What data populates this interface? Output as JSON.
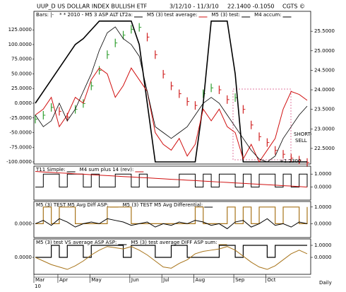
{
  "header": {
    "symbol": "UUP_D   US DOLLAR INDEX BULLISH ETF",
    "range": "3/12/10 - 11/3/10",
    "quote": "22.1400   -0.1050",
    "credit": "CGTS ©"
  },
  "chart_data": [
    {
      "type": "line",
      "series": [
        {
          "name": "Bars: |-",
          "style": "bars",
          "axis": "y2",
          "up_color": "#2f9e2f",
          "down_color": "#d02020",
          "values": [
            23.25,
            23.35,
            23.55,
            23.45,
            23.3,
            23.5,
            23.65,
            24.1,
            24.5,
            24.9,
            25.2,
            25.4,
            25.55,
            25.6,
            25.35,
            24.9,
            24.4,
            24.1,
            23.9,
            23.7,
            23.6,
            23.9,
            24.05,
            24.0,
            23.75,
            23.8,
            23.5,
            23.1,
            22.8,
            22.65,
            22.45,
            22.35,
            22.25,
            22.2,
            22.14
          ]
        },
        {
          "name": "* * 2010 - M5 3 ASP ALT LT2a:",
          "color": "#000000",
          "width": 1.6,
          "values": [
            0,
            20,
            40,
            60,
            80,
            100,
            110,
            125,
            140,
            140,
            140,
            140,
            140,
            100,
            0,
            -100,
            -100,
            -100,
            -100,
            -100,
            -100,
            0,
            140,
            140,
            140,
            50,
            -100,
            -100,
            -100,
            -100,
            -100,
            -100,
            -100,
            -100,
            -100
          ]
        },
        {
          "name": "M5 (3) test average:",
          "color": "#d01010",
          "width": 1,
          "values": [
            -20,
            -10,
            10,
            -40,
            -20,
            10,
            0,
            40,
            60,
            50,
            10,
            30,
            60,
            40,
            20,
            -50,
            -70,
            -80,
            -60,
            -90,
            -70,
            -10,
            -30,
            -10,
            -40,
            -50,
            -95,
            -70,
            -100,
            -80,
            -60,
            -10,
            20,
            15,
            5
          ]
        },
        {
          "name": "M5 (3) test:",
          "color": "#000000",
          "width": 0.8,
          "values": [
            -20,
            -40,
            -30,
            0,
            -30,
            -10,
            20,
            50,
            90,
            120,
            130,
            110,
            100,
            80,
            20,
            -40,
            -50,
            -60,
            -50,
            -40,
            -20,
            0,
            10,
            0,
            -20,
            -40,
            -60,
            -80,
            -95,
            -100,
            -90,
            -60,
            -40,
            -20,
            -5
          ]
        }
      ],
      "extra_legend": [
        "M4 accum:"
      ],
      "annotations": [
        "SHORT-",
        "SELL",
        "+1.2300"
      ],
      "ylim": [
        -103.6,
        156.6
      ],
      "yticks": [
        {
          "value": 125,
          "label": "125.0000"
        },
        {
          "value": 100,
          "label": "100.0000"
        },
        {
          "value": 75,
          "label": "75.0000"
        },
        {
          "value": 50,
          "label": "50.0000"
        },
        {
          "value": 25,
          "label": "25.0000"
        },
        {
          "value": 0,
          "label": "0.0000"
        },
        {
          "value": -25,
          "label": "-25.0000"
        },
        {
          "value": -50,
          "label": "-50.0000"
        },
        {
          "value": -75,
          "label": "-75.0000"
        },
        {
          "value": -100,
          "label": "-100.0000"
        }
      ],
      "y2lim": [
        22.1,
        26.01
      ],
      "y2ticks": [
        {
          "value": 25.5,
          "label": "25.5000"
        },
        {
          "value": 25,
          "label": "25.0000"
        },
        {
          "value": 24.5,
          "label": "24.5000"
        },
        {
          "value": 24,
          "label": "24.0000"
        },
        {
          "value": 23.5,
          "label": "23.5000"
        },
        {
          "value": 23,
          "label": "23.0000"
        },
        {
          "value": 22.5,
          "label": "22.5000"
        }
      ]
    },
    {
      "type": "line",
      "series": [
        {
          "name": "T11 Simple:",
          "color": "#000000",
          "width": 1,
          "step": true,
          "axis": "y2",
          "values": [
            0,
            1,
            1,
            0,
            1,
            1,
            0,
            1,
            0,
            0,
            1,
            1,
            0,
            1,
            0,
            0,
            0,
            0,
            1,
            1,
            0,
            1,
            0,
            1,
            1,
            0,
            1,
            0,
            1,
            1,
            0,
            1,
            0,
            1,
            0
          ]
        },
        {
          "name": "M4 sum plus 14 (rev):",
          "color": "#d01010",
          "width": 1,
          "axis": "y2",
          "values": [
            1.2,
            1.16,
            1.13,
            1.09,
            1.06,
            1.02,
            0.99,
            0.95,
            0.92,
            0.88,
            0.85,
            0.81,
            0.78,
            0.74,
            0.71,
            0.67,
            0.64,
            0.6,
            0.57,
            0.53,
            0.5,
            0.46,
            0.43,
            0.39,
            0.36,
            0.32,
            0.29,
            0.25,
            0.22,
            0.18,
            0.15,
            0.11,
            0.08,
            0.04,
            0
          ]
        }
      ],
      "y2lim": [
        -1.0,
        1.61
      ],
      "y2ticks": [
        {
          "value": 1,
          "label": "1.0000"
        },
        {
          "value": 0,
          "label": "0.0000"
        }
      ]
    },
    {
      "type": "line",
      "series": [
        {
          "name": "M5 (3) TEST M5 Avg Diff ASP:",
          "color": "#a8741a",
          "width": 1.2,
          "step": true,
          "axis": "y2",
          "values": [
            0,
            1,
            0,
            1,
            1,
            0,
            0,
            0,
            0,
            1,
            1,
            1,
            0,
            0,
            0,
            0,
            0,
            0,
            0,
            0,
            1,
            0,
            0,
            0,
            1,
            0,
            1,
            0,
            1,
            1,
            0,
            1,
            1,
            0,
            1
          ]
        },
        {
          "name": "M5 (3) TEST M5 Avg Differential:",
          "color": "#000000",
          "width": 1,
          "values": [
            0,
            0.2,
            -0.1,
            0.3,
            0.1,
            -0.2,
            0,
            0.1,
            0,
            0.3,
            0.2,
            0.1,
            -0.1,
            0,
            0.1,
            -0.2,
            0,
            -0.1,
            0.1,
            0,
            0.2,
            0.1,
            -0.1,
            0,
            -0.3,
            0.1,
            0.2,
            -0.2,
            0,
            0.3,
            -0.1,
            0,
            -0.2,
            0.1,
            0
          ]
        }
      ],
      "ylim": [
        -0.83,
        1.33
      ],
      "yticks": [
        {
          "value": 0,
          "label": "0.0000"
        }
      ],
      "y2lim": [
        -0.83,
        1.33
      ],
      "y2ticks": [
        {
          "value": 1,
          "label": "1.0000"
        },
        {
          "value": 0,
          "label": "0.0000"
        }
      ]
    },
    {
      "type": "line",
      "series": [
        {
          "name": "M5 (3) test VS average ASP ASP:",
          "color": "#000000",
          "width": 1.2,
          "step": true,
          "axis": "y2",
          "values": [
            0,
            0,
            1,
            0,
            1,
            1,
            0,
            1,
            1,
            1,
            1,
            0,
            1,
            1,
            1,
            0,
            0,
            1,
            1,
            0,
            0,
            0,
            0,
            1,
            1,
            0,
            1,
            1,
            1,
            0,
            1,
            1,
            1,
            1,
            1
          ]
        },
        {
          "name": "M5 (3) test average DIFF ASP sum:",
          "color": "#a8741a",
          "width": 1,
          "values": [
            0,
            -0.3,
            -0.6,
            -0.8,
            -1.0,
            -0.7,
            -0.3,
            0.2,
            0.6,
            0.9,
            0.8,
            0.7,
            0.9,
            0.6,
            0.2,
            -0.3,
            -0.8,
            -0.9,
            -0.5,
            -0.2,
            0.3,
            0.5,
            0.6,
            0.7,
            0.9,
            0.6,
            0.1,
            -0.4,
            -0.8,
            -1.0,
            -0.7,
            -0.2,
            0.3,
            0.6,
            0.3
          ]
        }
      ],
      "ylim": [
        -1.41,
        1.53
      ],
      "yticks": [
        {
          "value": 0,
          "label": "0.0000"
        }
      ],
      "y2lim": [
        -1.41,
        1.53
      ],
      "y2ticks": [
        {
          "value": 1,
          "label": "1.0000"
        },
        {
          "value": 0,
          "label": "0.0000"
        }
      ],
      "categories": [
        "Mar",
        null,
        null,
        "Apr",
        null,
        null,
        null,
        "May",
        null,
        null,
        null,
        null,
        "Jun",
        null,
        null,
        null,
        "Jul",
        null,
        null,
        null,
        "Aug",
        null,
        null,
        null,
        null,
        "Sep",
        null,
        null,
        null,
        "Oct",
        null,
        null,
        null,
        null,
        null
      ],
      "year_label": "10",
      "period_label": "Daily"
    }
  ]
}
